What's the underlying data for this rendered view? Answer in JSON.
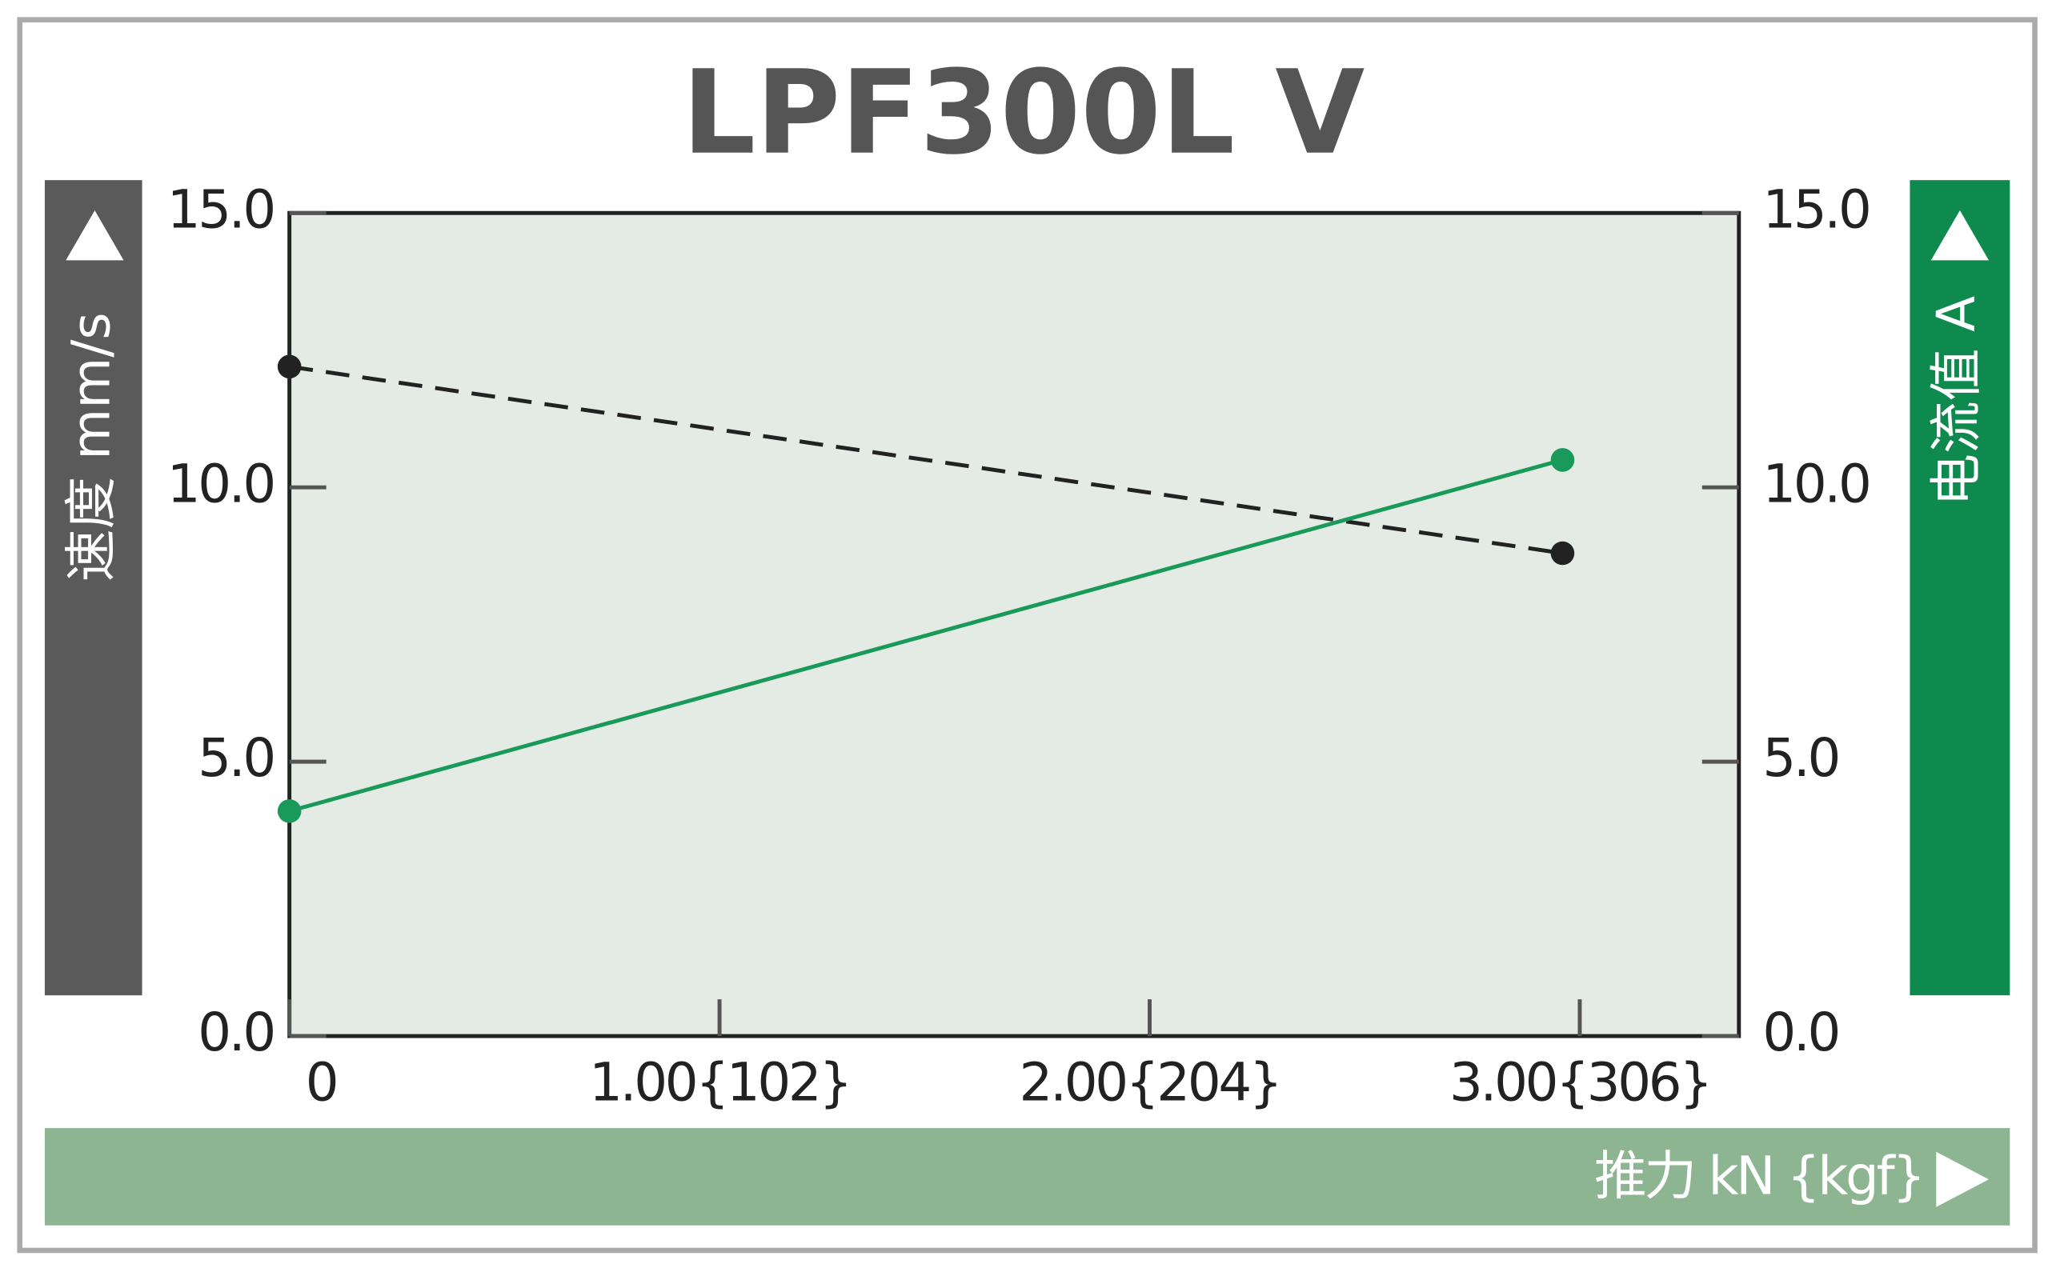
{
  "chart_data": {
    "type": "line",
    "title": "LPF300L V",
    "y_label": "速度 mm/s",
    "y2_label": "电流值 A",
    "x_label": "推力 kN {kgf}",
    "x": [
      0,
      2.96
    ],
    "series": [
      {
        "name": "速度",
        "color": "#222222",
        "line_style": "dashed",
        "values": [
          12.2,
          8.8
        ]
      },
      {
        "name": "电流值",
        "color": "#1a9a5a",
        "line_style": "solid",
        "axis": "y2",
        "values": [
          4.1,
          10.5
        ]
      }
    ],
    "xlim": [
      0,
      3.37
    ],
    "xticks": [
      0,
      {
        "value": 1,
        "label": "1.00{102}"
      },
      {
        "value": 2,
        "label": "2.00{204}"
      },
      {
        "value": 3,
        "label": "3.00{306}"
      }
    ],
    "ylim": [
      0,
      15
    ],
    "yticks": [
      {
        "value": 0,
        "label": "0.0"
      },
      {
        "value": 5,
        "label": "5.0"
      },
      {
        "value": 10,
        "label": "10.0"
      },
      {
        "value": 15,
        "label": "15.0"
      }
    ],
    "y2lim": [
      0,
      15
    ],
    "y2ticks": [
      {
        "value": 0,
        "label": "0.0"
      },
      {
        "value": 5,
        "label": "5.0"
      },
      {
        "value": 10,
        "label": "10.0"
      },
      {
        "value": 15,
        "label": "15.0"
      }
    ]
  }
}
